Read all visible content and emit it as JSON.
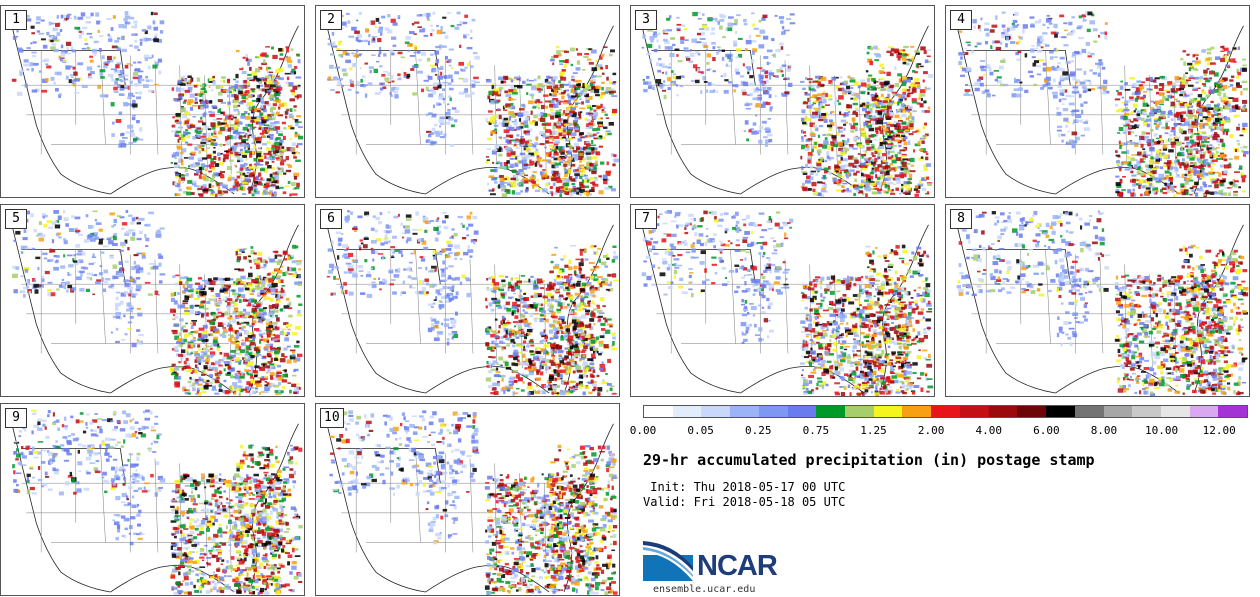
{
  "panels": [
    {
      "label": "1"
    },
    {
      "label": "2"
    },
    {
      "label": "3"
    },
    {
      "label": "4"
    },
    {
      "label": "5"
    },
    {
      "label": "6"
    },
    {
      "label": "7"
    },
    {
      "label": "8"
    },
    {
      "label": "9"
    },
    {
      "label": "10"
    }
  ],
  "colorbar": {
    "colors": [
      "#ffffff",
      "#e3ecfb",
      "#c8d7fa",
      "#9bb4f7",
      "#7d97f3",
      "#6a7bee",
      "#009a2b",
      "#a6cf6c",
      "#f5f51e",
      "#f8a013",
      "#e8141c",
      "#c40f14",
      "#9c0a0e",
      "#6e0507",
      "#000000",
      "#737373",
      "#a6a6a6",
      "#c8c8c8",
      "#e6e6e6",
      "#d9a8f0",
      "#a433d6"
    ],
    "labels": [
      "0.00",
      "0.05",
      "0.25",
      "0.75",
      "1.25",
      "2.00",
      "4.00",
      "6.00",
      "8.00",
      "10.00",
      "12.00"
    ]
  },
  "title": "29-hr accumulated precipitation (in) postage stamp",
  "init": " Init: Thu 2018-05-17 00 UTC",
  "valid": "Valid: Fri 2018-05-18 05 UTC",
  "logo": {
    "text": "NCAR",
    "url": "ensemble.ucar.edu"
  }
}
